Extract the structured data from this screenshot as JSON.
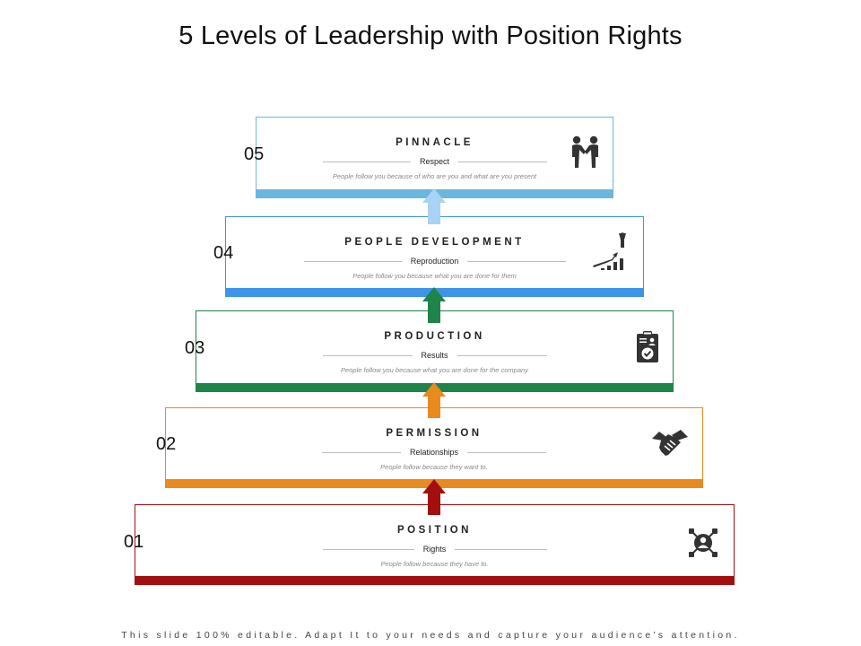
{
  "title": "5 Levels of Leadership with Position Rights",
  "levels": [
    {
      "number": "05",
      "heading": "PINNACLE",
      "subtitle": "Respect",
      "description": "People follow you because of who are you and what are you present",
      "color": "#6BB6DD",
      "icon": "handshake-people-icon"
    },
    {
      "number": "04",
      "heading": "PEOPLE DEVELOPMENT",
      "subtitle": "Reproduction",
      "description": "People follow you because what you are done for them",
      "color": "#3D94E8",
      "icon": "growth-chart-icon"
    },
    {
      "number": "03",
      "heading": "PRODUCTION",
      "subtitle": "Results",
      "description": "People follow you because what you are done for the company",
      "color": "#1E8449",
      "icon": "clipboard-check-icon"
    },
    {
      "number": "02",
      "heading": "PERMISSION",
      "subtitle": "Relationships",
      "description": "People follow because they want to.",
      "color": "#E88A1E",
      "icon": "handshake-icon"
    },
    {
      "number": "01",
      "heading": "POSITION",
      "subtitle": "Rights",
      "description": "People follow because they have to.",
      "color": "#A30F0F",
      "icon": "target-person-icon"
    }
  ],
  "arrows": [
    {
      "color": "#A9D2F5"
    },
    {
      "color": "#1E8449"
    },
    {
      "color": "#E88A1E"
    },
    {
      "color": "#A30F0F"
    }
  ],
  "footer": "This slide 100% editable. Adapt It to your needs and capture your audience's attention."
}
